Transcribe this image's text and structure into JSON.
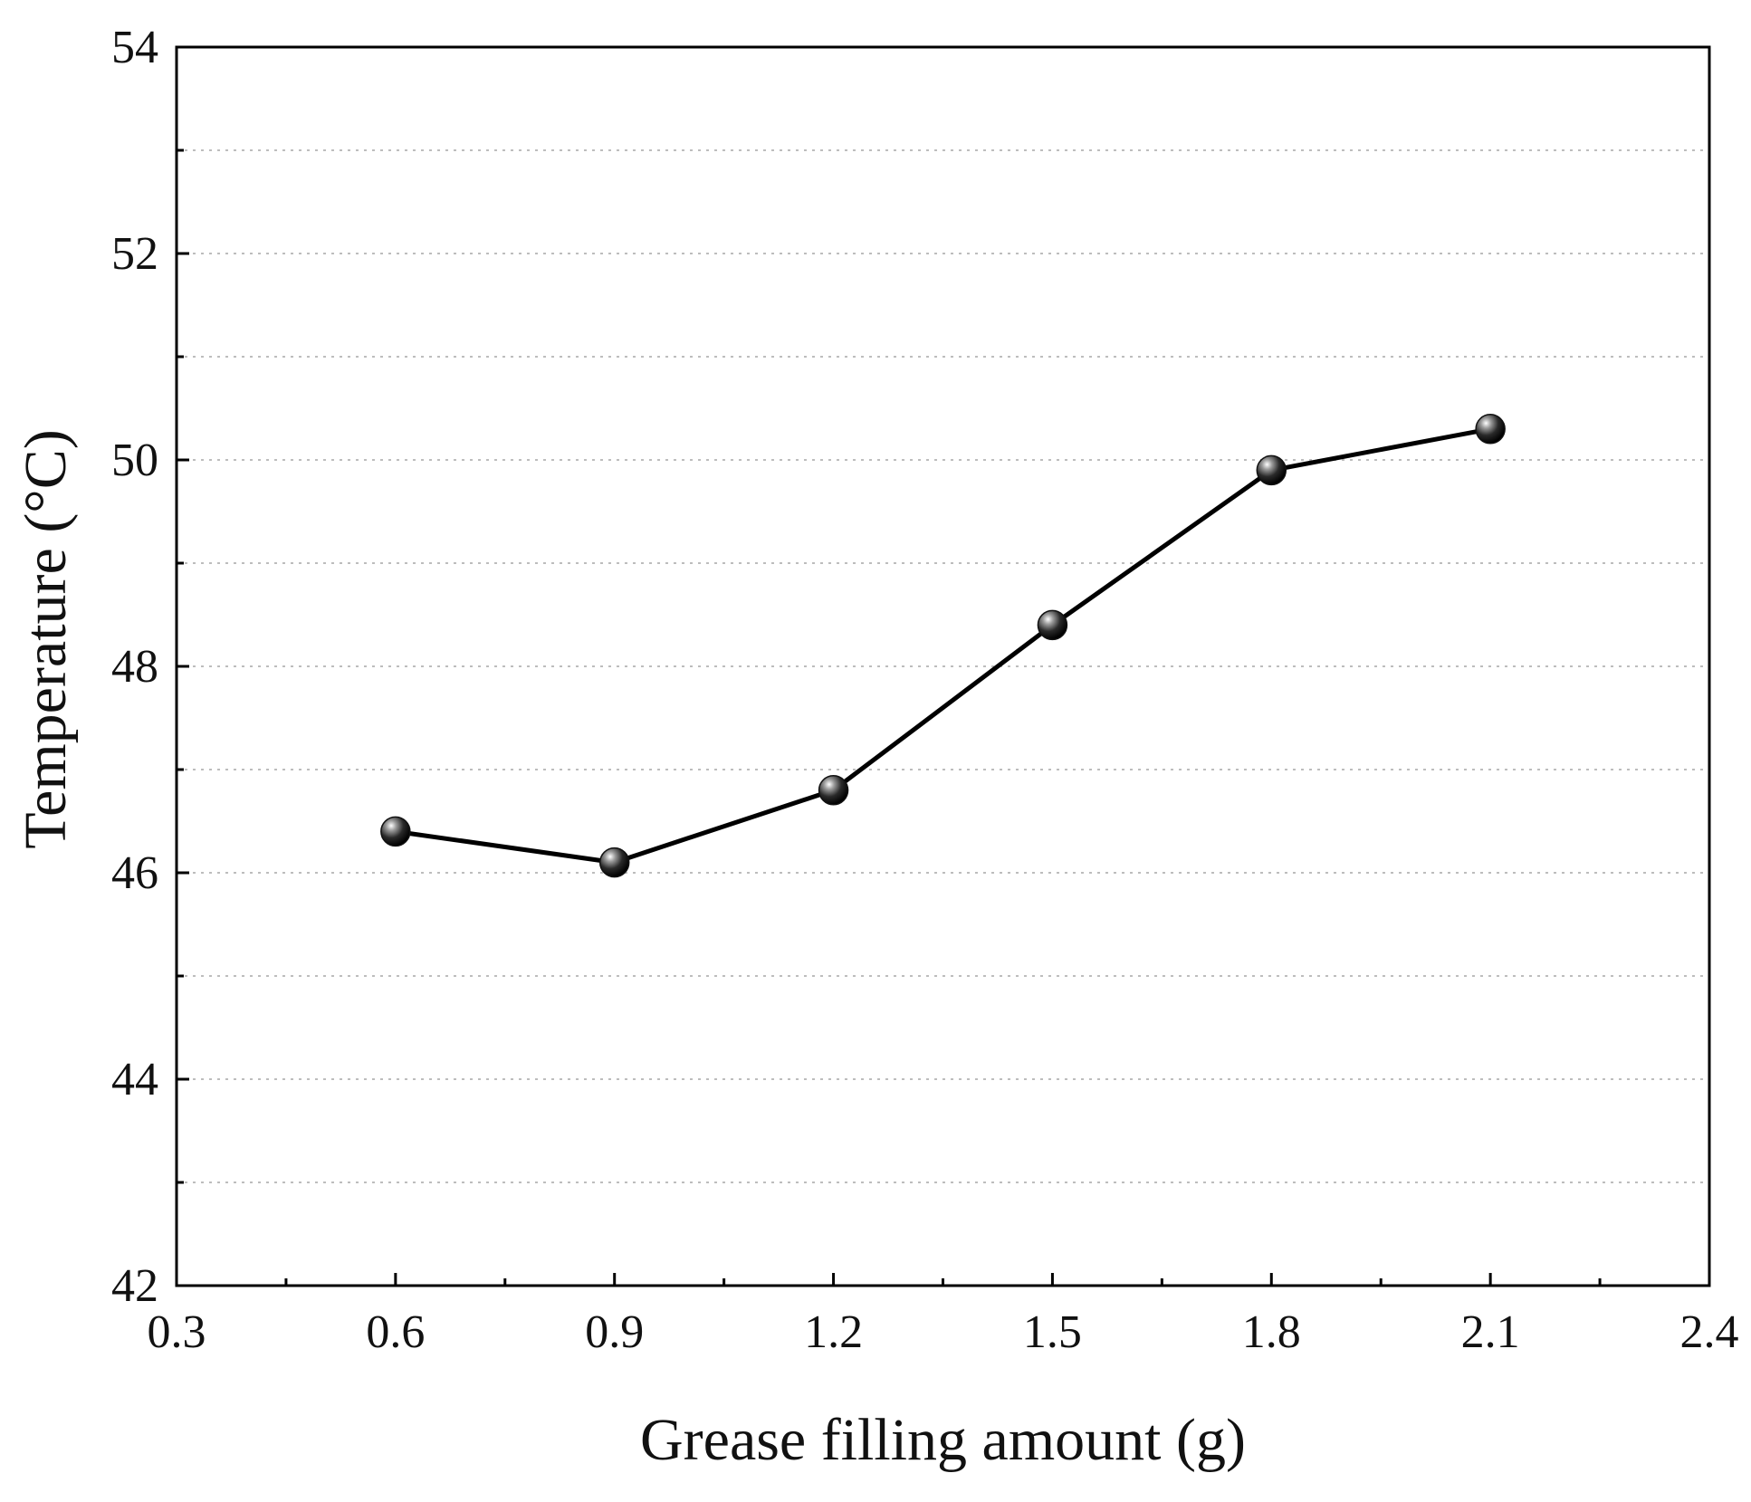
{
  "chart_data": {
    "type": "line",
    "title": "",
    "xlabel": "Grease filling amount (g)",
    "ylabel": "Temperature (°C)",
    "xlim": [
      0.3,
      2.4
    ],
    "ylim": [
      42,
      54
    ],
    "xticks": [
      "0.3",
      "0.6",
      "0.9",
      "1.2",
      "1.5",
      "1.8",
      "2.1",
      "2.4"
    ],
    "yticks": [
      "42",
      "44",
      "46",
      "48",
      "50",
      "52",
      "54"
    ],
    "grid": true,
    "legend": "none",
    "series": [
      {
        "name": "Temperature",
        "x": [
          0.6,
          0.9,
          1.2,
          1.5,
          1.8,
          2.1
        ],
        "values": [
          46.4,
          46.1,
          46.8,
          48.4,
          49.9,
          50.3
        ]
      }
    ]
  },
  "colors": {
    "line": "#000000",
    "grid": "#bdbdbd",
    "marker": "#111111"
  }
}
